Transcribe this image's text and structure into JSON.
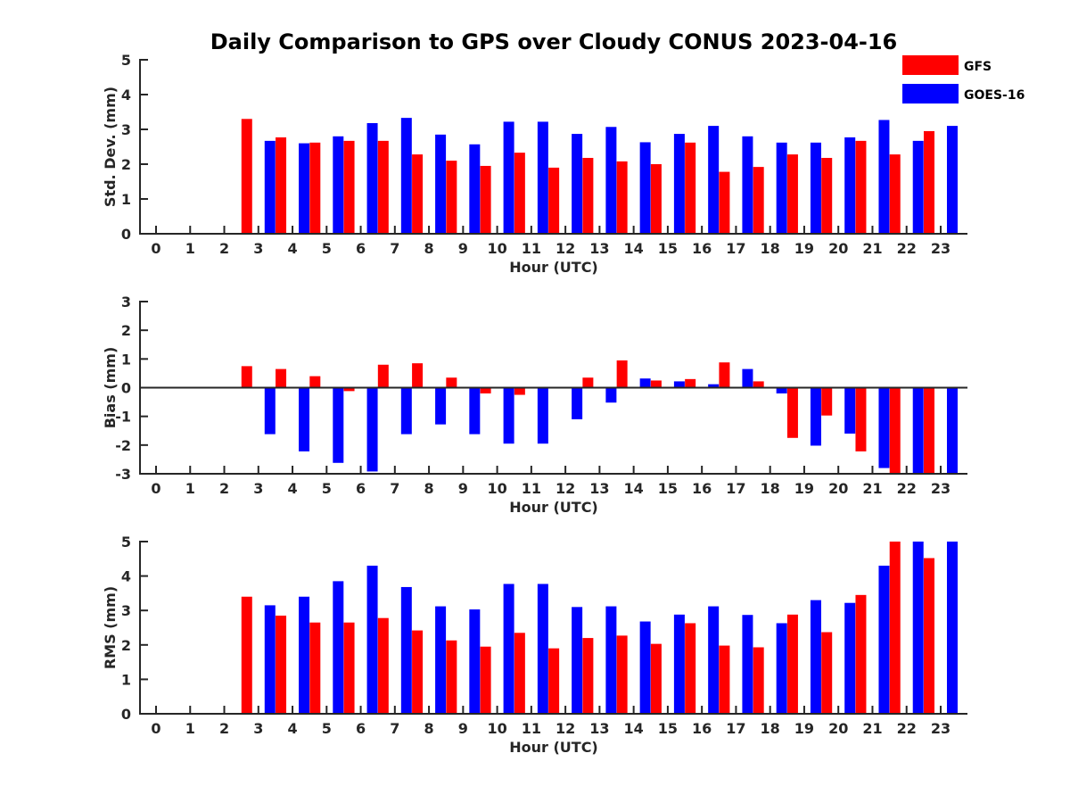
{
  "title": "Daily Comparison to GPS over Cloudy CONUS 2023-04-16",
  "legend": [
    {
      "name": "GFS",
      "color": "#ff0000"
    },
    {
      "name": "GOES-16",
      "color": "#0000ff"
    }
  ],
  "chart_data": [
    {
      "type": "bar",
      "title": "Daily Comparison to GPS over Cloudy CONUS 2023-04-16",
      "xlabel": "Hour (UTC)",
      "ylabel": "Std. Dev. (mm)",
      "categories": [
        "0",
        "1",
        "2",
        "3",
        "4",
        "5",
        "6",
        "7",
        "8",
        "9",
        "10",
        "11",
        "12",
        "13",
        "14",
        "15",
        "16",
        "17",
        "18",
        "19",
        "20",
        "21",
        "22",
        "23"
      ],
      "ylim": [
        0,
        5
      ],
      "yticks": [
        0,
        1,
        2,
        3,
        4,
        5
      ],
      "grid": false,
      "legend_position": "top-right",
      "series": [
        {
          "name": "GFS",
          "color": "#ff0000",
          "values": [
            null,
            null,
            null,
            3.3,
            2.77,
            2.62,
            2.67,
            2.67,
            2.28,
            2.1,
            1.95,
            2.33,
            1.9,
            2.18,
            2.08,
            2.0,
            2.62,
            1.78,
            1.92,
            2.28,
            2.18,
            2.67,
            2.28,
            2.95
          ]
        },
        {
          "name": "GOES-16",
          "color": "#0000ff",
          "values": [
            null,
            null,
            null,
            2.67,
            2.6,
            2.8,
            3.18,
            3.33,
            2.85,
            2.57,
            3.22,
            3.22,
            2.87,
            3.07,
            2.63,
            2.87,
            3.1,
            2.8,
            2.62,
            2.62,
            2.77,
            3.27,
            2.67,
            3.1
          ]
        }
      ]
    },
    {
      "type": "bar",
      "xlabel": "Hour (UTC)",
      "ylabel": "Bias (mm)",
      "categories": [
        "0",
        "1",
        "2",
        "3",
        "4",
        "5",
        "6",
        "7",
        "8",
        "9",
        "10",
        "11",
        "12",
        "13",
        "14",
        "15",
        "16",
        "17",
        "18",
        "19",
        "20",
        "21",
        "22",
        "23"
      ],
      "ylim": [
        -3,
        3
      ],
      "yticks": [
        -3,
        -2,
        -1,
        0,
        1,
        2,
        3
      ],
      "grid": false,
      "series": [
        {
          "name": "GFS",
          "color": "#ff0000",
          "values": [
            null,
            null,
            null,
            0.75,
            0.65,
            0.4,
            -0.12,
            0.8,
            0.85,
            0.35,
            -0.2,
            -0.25,
            null,
            0.35,
            0.95,
            0.25,
            0.3,
            0.88,
            0.22,
            -1.75,
            -0.97,
            -2.22,
            -3.0,
            -3.0
          ]
        },
        {
          "name": "GOES-16",
          "color": "#0000ff",
          "values": [
            null,
            null,
            null,
            -1.62,
            -2.22,
            -2.62,
            -2.92,
            -1.62,
            -1.28,
            -1.62,
            -1.95,
            -1.95,
            -1.1,
            -0.52,
            0.32,
            0.22,
            0.12,
            0.65,
            -0.2,
            -2.02,
            -1.6,
            -2.8,
            -3.0,
            -3.0
          ]
        }
      ]
    },
    {
      "type": "bar",
      "xlabel": "Hour (UTC)",
      "ylabel": "RMS (mm)",
      "categories": [
        "0",
        "1",
        "2",
        "3",
        "4",
        "5",
        "6",
        "7",
        "8",
        "9",
        "10",
        "11",
        "12",
        "13",
        "14",
        "15",
        "16",
        "17",
        "18",
        "19",
        "20",
        "21",
        "22",
        "23"
      ],
      "ylim": [
        0,
        5
      ],
      "yticks": [
        0,
        1,
        2,
        3,
        4,
        5
      ],
      "grid": false,
      "series": [
        {
          "name": "GFS",
          "color": "#ff0000",
          "values": [
            null,
            null,
            null,
            3.4,
            2.85,
            2.65,
            2.65,
            2.78,
            2.42,
            2.13,
            1.95,
            2.35,
            1.9,
            2.2,
            2.27,
            2.03,
            2.63,
            1.98,
            1.93,
            2.88,
            2.37,
            3.45,
            5.0,
            4.52
          ]
        },
        {
          "name": "GOES-16",
          "color": "#0000ff",
          "values": [
            null,
            null,
            null,
            3.15,
            3.4,
            3.85,
            4.3,
            3.68,
            3.12,
            3.03,
            3.77,
            3.77,
            3.1,
            3.12,
            2.68,
            2.88,
            3.12,
            2.87,
            2.63,
            3.3,
            3.22,
            4.3,
            5.0,
            5.0
          ]
        }
      ]
    }
  ]
}
